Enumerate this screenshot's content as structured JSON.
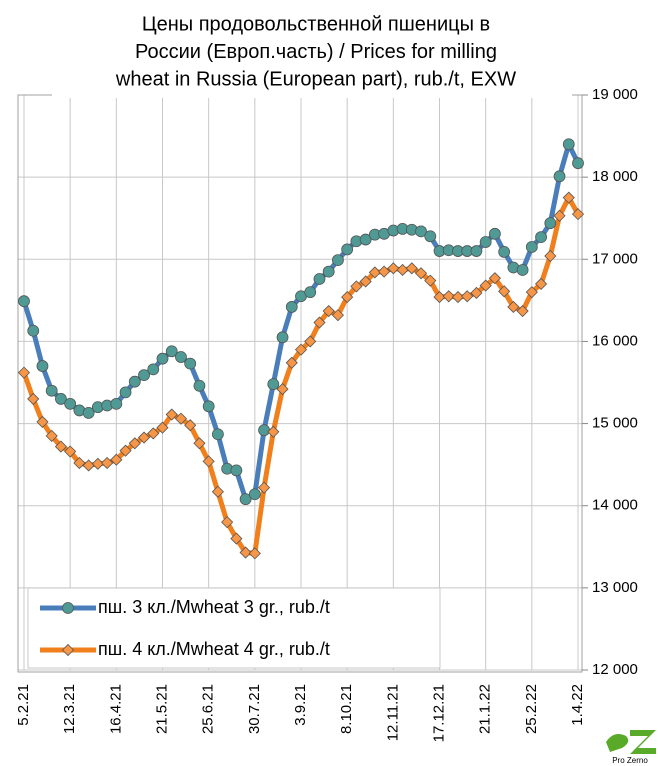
{
  "chart_data": {
    "type": "line",
    "title_lines": [
      "Цены продовольственной пшеницы в",
      "России (Европ.часть) / Prices for milling",
      "wheat in Russia (European part), rub./t, EXW"
    ],
    "categories": [
      "5.2.21",
      null,
      null,
      null,
      null,
      "12.3.21",
      null,
      null,
      null,
      null,
      "16.4.21",
      null,
      null,
      null,
      null,
      "21.5.21",
      null,
      null,
      null,
      null,
      "25.6.21",
      null,
      null,
      null,
      null,
      "30.7.21",
      null,
      null,
      null,
      null,
      "3.9.21",
      null,
      null,
      null,
      null,
      "8.10.21",
      null,
      null,
      null,
      null,
      "12.11.21",
      null,
      null,
      null,
      null,
      "17.12.21",
      null,
      null,
      null,
      null,
      "21.1.22",
      null,
      null,
      null,
      null,
      "25.2.22",
      null,
      null,
      null,
      null,
      "1.4.22"
    ],
    "series": [
      {
        "name": "пш. 3 кл./Mwheat 3 gr., rub./t",
        "color": "#4a7ebb",
        "marker": "circle",
        "marker_fill": "#4f9a94",
        "values": [
          16490,
          16130,
          15700,
          15400,
          15300,
          15240,
          15160,
          15130,
          15200,
          15220,
          15240,
          15380,
          15510,
          15590,
          15660,
          15790,
          15880,
          15810,
          15730,
          15460,
          15210,
          14870,
          14450,
          14430,
          14080,
          14140,
          14920,
          15480,
          16050,
          16420,
          16550,
          16600,
          16760,
          16850,
          16990,
          17120,
          17220,
          17240,
          17300,
          17310,
          17350,
          17370,
          17360,
          17340,
          17280,
          17100,
          17110,
          17100,
          17100,
          17100,
          17210,
          17310,
          17090,
          16900,
          16870,
          17150,
          17270,
          17440,
          18010,
          18400,
          18170
        ]
      },
      {
        "name": "пш. 4 кл./Mwheat 4 gr., rub./t",
        "color": "#f07f1c",
        "marker": "diamond",
        "marker_fill": "#f79646",
        "values": [
          15620,
          15300,
          15020,
          14850,
          14720,
          14660,
          14520,
          14490,
          14510,
          14520,
          14560,
          14670,
          14760,
          14830,
          14880,
          14950,
          15110,
          15060,
          14980,
          14760,
          14540,
          14170,
          13800,
          13600,
          13430,
          13420,
          14220,
          14900,
          15420,
          15740,
          15900,
          16000,
          16230,
          16370,
          16320,
          16540,
          16670,
          16730,
          16840,
          16850,
          16890,
          16870,
          16890,
          16830,
          16740,
          16540,
          16550,
          16540,
          16550,
          16590,
          16680,
          16770,
          16610,
          16420,
          16370,
          16600,
          16700,
          17040,
          17530,
          17750,
          17550
        ]
      }
    ],
    "ylim": [
      12000,
      19000
    ],
    "yticks": [
      {
        "value": 12000,
        "label": "12 000"
      },
      {
        "value": 13000,
        "label": "13 000"
      },
      {
        "value": 14000,
        "label": "14 000"
      },
      {
        "value": 15000,
        "label": "15 000"
      },
      {
        "value": 16000,
        "label": "16 000"
      },
      {
        "value": 17000,
        "label": "17 000"
      },
      {
        "value": 18000,
        "label": "18 000"
      },
      {
        "value": 19000,
        "label": "19 000"
      }
    ],
    "grid": true,
    "legend": "lower left",
    "logo": "Pro Zerno"
  }
}
